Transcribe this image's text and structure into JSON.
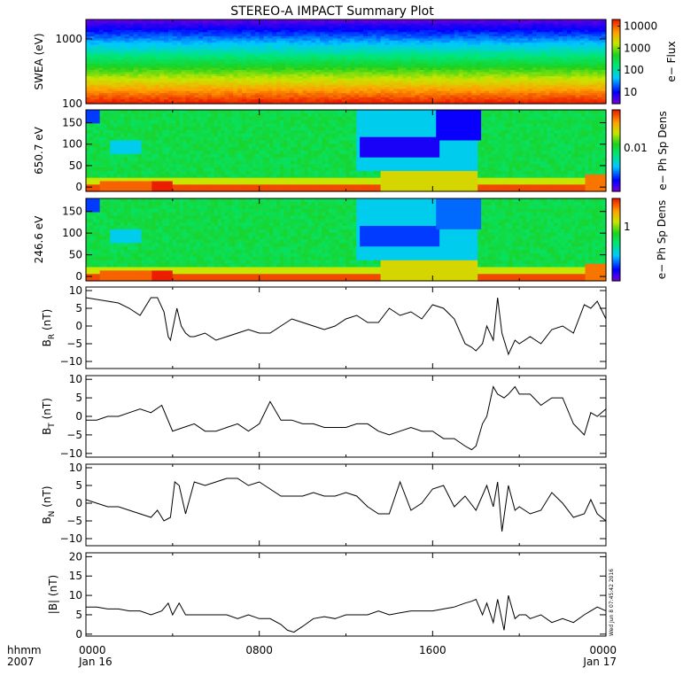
{
  "title": "STEREO-A IMPACT Summary Plot",
  "time_axis": {
    "corner_top": "hhmm",
    "corner_bottom": "2007",
    "ticks": [
      {
        "hour": 0,
        "top": "0000",
        "bottom": "Jan 16"
      },
      {
        "hour": 8,
        "top": "0800",
        "bottom": ""
      },
      {
        "hour": 16,
        "top": "1600",
        "bottom": ""
      },
      {
        "hour": 24,
        "top": "0000",
        "bottom": "Jan 17"
      }
    ]
  },
  "timestamp": "Wed Jun  8 07:45:42 2016",
  "colors": {
    "trace": "#000000",
    "frame": "#000000"
  },
  "chart_data": [
    {
      "type": "heatmap",
      "name": "swea",
      "ylabel": "SWEA (eV)",
      "yscale": "log",
      "ylim": [
        100,
        2000
      ],
      "yticks": [
        100,
        1000
      ],
      "ytick_labels": [
        "100",
        "1000"
      ],
      "xlim": [
        0,
        24
      ],
      "colorbar": {
        "label": "e− Flux",
        "scale": "log",
        "range": [
          3,
          20000
        ],
        "ticks": [
          10,
          100,
          1000,
          10000
        ],
        "tick_labels": [
          "10",
          "100",
          "1000",
          "10000"
        ]
      }
    },
    {
      "type": "heatmap",
      "name": "pad_650",
      "ylabel": "650.7 eV",
      "ylim": [
        -10,
        180
      ],
      "yticks": [
        0,
        50,
        100,
        150
      ],
      "ytick_labels": [
        "0",
        "50",
        "100",
        "150"
      ],
      "xlim": [
        0,
        24
      ],
      "colorbar": {
        "label": "e− Ph Sp Dens",
        "scale": "log",
        "tick_labels": [
          "0.01"
        ]
      }
    },
    {
      "type": "heatmap",
      "name": "pad_246",
      "ylabel": "246.6 eV",
      "ylim": [
        -10,
        180
      ],
      "yticks": [
        0,
        50,
        100,
        150
      ],
      "ytick_labels": [
        "0",
        "50",
        "100",
        "150"
      ],
      "xlim": [
        0,
        24
      ],
      "colorbar": {
        "label": "e− Ph Sp Dens",
        "scale": "log",
        "tick_labels": [
          "1"
        ]
      }
    },
    {
      "type": "line",
      "name": "br",
      "ylabel_main": "B",
      "ylabel_sub": "R",
      "ylabel_unit": "(nT)",
      "ylim": [
        -12,
        11
      ],
      "yticks": [
        -10,
        -5,
        0,
        5,
        10
      ],
      "ytick_labels": [
        "−10",
        "−5",
        "0",
        "5",
        "10"
      ],
      "x": [
        0,
        0.5,
        1,
        1.5,
        2,
        2.5,
        3,
        3.3,
        3.6,
        3.8,
        3.9,
        4.0,
        4.2,
        4.4,
        4.6,
        4.8,
        5,
        5.5,
        6,
        6.5,
        7,
        7.5,
        8,
        8.5,
        9,
        9.5,
        10,
        10.5,
        11,
        11.5,
        12,
        12.5,
        13,
        13.5,
        14,
        14.5,
        15,
        15.5,
        16,
        16.5,
        17,
        17.5,
        17.8,
        18,
        18.3,
        18.5,
        18.8,
        19,
        19.2,
        19.5,
        19.8,
        20,
        20.5,
        21,
        21.5,
        22,
        22.5,
        23,
        23.3,
        23.6,
        24
      ],
      "y": [
        8,
        7.5,
        7,
        6.5,
        5,
        3,
        8,
        8,
        4,
        -3,
        -4,
        -1,
        5,
        0,
        -2,
        -3,
        -3,
        -2,
        -4,
        -3,
        -2,
        -1,
        -2,
        -2,
        0,
        2,
        1,
        0,
        -1,
        0,
        2,
        3,
        1,
        1,
        5,
        3,
        4,
        2,
        6,
        5,
        2,
        -5,
        -6,
        -7,
        -5,
        0,
        -4,
        8,
        -2,
        -8,
        -4,
        -5,
        -3,
        -5,
        -1,
        0,
        -2,
        6,
        5,
        7,
        2
      ]
    },
    {
      "type": "line",
      "name": "bt",
      "ylabel_main": "B",
      "ylabel_sub": "T",
      "ylabel_unit": "(nT)",
      "ylim": [
        -11,
        11
      ],
      "yticks": [
        -10,
        -5,
        0,
        5,
        10
      ],
      "ytick_labels": [
        "−10",
        "−5",
        "0",
        "5",
        "10"
      ],
      "x": [
        0,
        0.5,
        1,
        1.5,
        2,
        2.5,
        3,
        3.5,
        4,
        4.5,
        5,
        5.5,
        6,
        6.5,
        7,
        7.5,
        8,
        8.5,
        9,
        9.5,
        10,
        10.5,
        11,
        11.5,
        12,
        12.5,
        13,
        13.5,
        14,
        14.5,
        15,
        15.5,
        16,
        16.5,
        17,
        17.5,
        17.8,
        18,
        18.3,
        18.5,
        18.8,
        19,
        19.3,
        19.5,
        19.8,
        20,
        20.5,
        21,
        21.5,
        22,
        22.5,
        23,
        23.3,
        23.6,
        24
      ],
      "y": [
        -1,
        -1,
        0,
        0,
        1,
        2,
        1,
        3,
        -4,
        -3,
        -2,
        -4,
        -4,
        -3,
        -2,
        -4,
        -2,
        4,
        -1,
        -1,
        -2,
        -2,
        -3,
        -3,
        -3,
        -2,
        -2,
        -4,
        -5,
        -4,
        -3,
        -4,
        -4,
        -6,
        -6,
        -8,
        -9,
        -8,
        -2,
        0,
        8,
        6,
        5,
        6,
        8,
        6,
        6,
        3,
        5,
        5,
        -2,
        -5,
        1,
        0,
        2
      ]
    },
    {
      "type": "line",
      "name": "bn",
      "ylabel_main": "B",
      "ylabel_sub": "N",
      "ylabel_unit": "(nT)",
      "ylim": [
        -12,
        11
      ],
      "yticks": [
        -10,
        -5,
        0,
        5,
        10
      ],
      "ytick_labels": [
        "−10",
        "−5",
        "0",
        "5",
        "10"
      ],
      "x": [
        0,
        0.5,
        1,
        1.5,
        2,
        2.5,
        3,
        3.3,
        3.6,
        3.9,
        4.1,
        4.3,
        4.6,
        5,
        5.5,
        6,
        6.5,
        7,
        7.5,
        8,
        8.5,
        9,
        9.5,
        10,
        10.5,
        11,
        11.5,
        12,
        12.5,
        13,
        13.5,
        14,
        14.5,
        15,
        15.5,
        16,
        16.5,
        17,
        17.5,
        18,
        18.5,
        18.8,
        19,
        19.2,
        19.5,
        19.8,
        20,
        20.5,
        21,
        21.5,
        22,
        22.5,
        23,
        23.3,
        23.6,
        24
      ],
      "y": [
        1,
        0,
        -1,
        -1,
        -2,
        -3,
        -4,
        -2,
        -5,
        -4,
        6,
        5,
        -3,
        6,
        5,
        6,
        7,
        7,
        5,
        6,
        4,
        2,
        2,
        2,
        3,
        2,
        2,
        3,
        2,
        -1,
        -3,
        -3,
        6,
        -2,
        0,
        4,
        5,
        -1,
        2,
        -2,
        5,
        -1,
        6,
        -8,
        5,
        -2,
        -1,
        -3,
        -2,
        3,
        0,
        -4,
        -3,
        1,
        -3,
        -5
      ]
    },
    {
      "type": "line",
      "name": "bmag",
      "ylabel": "|B| (nT)",
      "ylim": [
        -0.5,
        21
      ],
      "yticks": [
        0,
        5,
        10,
        15,
        20
      ],
      "ytick_labels": [
        "0",
        "5",
        "10",
        "15",
        "20"
      ],
      "x": [
        0,
        0.5,
        1,
        1.5,
        2,
        2.5,
        3,
        3.5,
        3.8,
        4.0,
        4.3,
        4.6,
        5,
        5.5,
        6,
        6.5,
        7,
        7.5,
        8,
        8.5,
        9,
        9.3,
        9.6,
        10,
        10.5,
        11,
        11.5,
        12,
        12.5,
        13,
        13.5,
        14,
        14.5,
        15,
        15.5,
        16,
        16.5,
        17,
        17.5,
        17.8,
        18,
        18.3,
        18.5,
        18.8,
        19,
        19.3,
        19.5,
        19.8,
        20,
        20.3,
        20.5,
        21,
        21.5,
        22,
        22.5,
        23,
        23.3,
        23.6,
        24
      ],
      "y": [
        7,
        7,
        6.5,
        6.5,
        6,
        6,
        5,
        6,
        8,
        5,
        8,
        5,
        5,
        5,
        5,
        5,
        4,
        5,
        4,
        4,
        2.5,
        1,
        0.5,
        2,
        4,
        4.5,
        4,
        5,
        5,
        5,
        6,
        5,
        5.5,
        6,
        6,
        6,
        6.5,
        7,
        8,
        8.5,
        9,
        5,
        8,
        3,
        9,
        1,
        10,
        4,
        5,
        5,
        4,
        5,
        3,
        4,
        3,
        5,
        6,
        7,
        6
      ]
    }
  ]
}
